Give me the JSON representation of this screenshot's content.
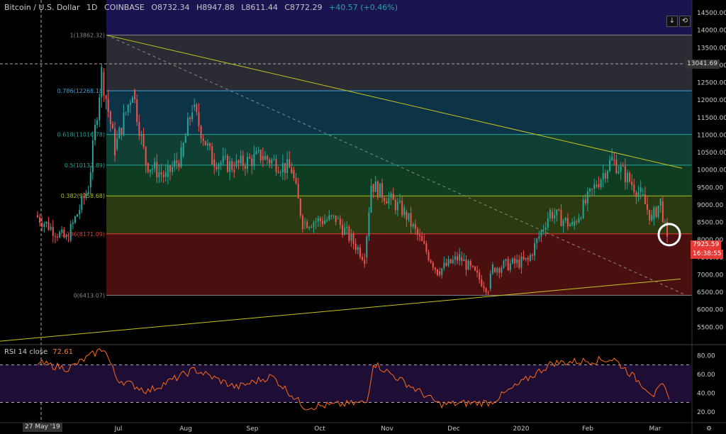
{
  "header": {
    "symbol": "Bitcoin / U.S. Dollar",
    "interval": "1D",
    "exchange": "COINBASE",
    "open": "O8732.34",
    "high": "H8947.88",
    "low": "L8611.44",
    "close": "C8772.29",
    "change": "+40.57 (+0.46%)"
  },
  "rsi": {
    "label": "RSI",
    "params": "14 close",
    "value": "72.61"
  },
  "controls": {
    "arrow_icon": "down-arrow-icon",
    "reset_icon": "reset-icon"
  },
  "price_tags": {
    "crosshair": "13041.69",
    "last": "7925.59",
    "countdown": "16:38:55"
  },
  "crosshair_date": "27 May '19",
  "colors": {
    "up": "#26a69a",
    "down": "#ef5350",
    "trendline": "#c6c41f",
    "rsi_line": "#ff6a1a",
    "last_price_tag": "#e53935"
  },
  "chart_data": {
    "type": "candlestick",
    "price_axis": {
      "range": [
        5000,
        14500
      ],
      "ticks": [
        "14500.00",
        "14000.00",
        "13500.00",
        "13000.00",
        "12500.00",
        "12000.00",
        "11500.00",
        "11000.00",
        "10500.00",
        "10000.00",
        "9500.00",
        "9000.00",
        "8500.00",
        "8000.00",
        "7500.00",
        "7000.00",
        "6500.00",
        "6000.00",
        "5500.00"
      ]
    },
    "time_axis": {
      "labels": [
        "Jul",
        "Aug",
        "Sep",
        "Oct",
        "Nov",
        "Dec",
        "2020",
        "Feb",
        "Mar"
      ]
    },
    "fib_levels": [
      {
        "label": "1(13862.32)",
        "price": 13862.32
      },
      {
        "label": "0.786(12268.18)",
        "price": 12268.18
      },
      {
        "label": "0.618(11016.78)",
        "price": 11016.78
      },
      {
        "label": "0.5(10137.89)",
        "price": 10137.89
      },
      {
        "label": "0.382(9258.68)",
        "price": 9258.68
      },
      {
        "label": "0.236(8171.09)",
        "price": 8171.09
      },
      {
        "label": "0(6413.07)",
        "price": 6413.07
      }
    ],
    "candles_close": [
      {
        "date": "2019-05-27",
        "close": 8700
      },
      {
        "date": "2019-06-10",
        "close": 8000
      },
      {
        "date": "2019-06-20",
        "close": 9500
      },
      {
        "date": "2019-06-26",
        "close": 12800
      },
      {
        "date": "2019-07-02",
        "close": 10600
      },
      {
        "date": "2019-07-10",
        "close": 12300
      },
      {
        "date": "2019-07-16",
        "close": 10200
      },
      {
        "date": "2019-07-25",
        "close": 9800
      },
      {
        "date": "2019-08-01",
        "close": 10400
      },
      {
        "date": "2019-08-06",
        "close": 11800
      },
      {
        "date": "2019-08-15",
        "close": 10300
      },
      {
        "date": "2019-08-25",
        "close": 10100
      },
      {
        "date": "2019-09-06",
        "close": 10400
      },
      {
        "date": "2019-09-20",
        "close": 10000
      },
      {
        "date": "2019-09-25",
        "close": 8500
      },
      {
        "date": "2019-10-10",
        "close": 8600
      },
      {
        "date": "2019-10-23",
        "close": 7500
      },
      {
        "date": "2019-10-26",
        "close": 9600
      },
      {
        "date": "2019-11-10",
        "close": 8800
      },
      {
        "date": "2019-11-25",
        "close": 7100
      },
      {
        "date": "2019-12-05",
        "close": 7500
      },
      {
        "date": "2019-12-18",
        "close": 6600
      },
      {
        "date": "2019-12-20",
        "close": 7200
      },
      {
        "date": "2020-01-05",
        "close": 7400
      },
      {
        "date": "2020-01-15",
        "close": 8800
      },
      {
        "date": "2020-01-25",
        "close": 8400
      },
      {
        "date": "2020-02-05",
        "close": 9600
      },
      {
        "date": "2020-02-12",
        "close": 10300
      },
      {
        "date": "2020-02-25",
        "close": 9300
      },
      {
        "date": "2020-03-01",
        "close": 8600
      },
      {
        "date": "2020-03-05",
        "close": 9100
      },
      {
        "date": "2020-03-08",
        "close": 7925.59
      }
    ],
    "rsi_axis": {
      "range": [
        10,
        90
      ],
      "ticks": [
        "80.00",
        "60.00",
        "40.00",
        "20.00"
      ],
      "bands": [
        70,
        30
      ]
    },
    "rsi_values": [
      {
        "date": "2019-05-27",
        "rsi": 72
      },
      {
        "date": "2019-06-10",
        "rsi": 66
      },
      {
        "date": "2019-06-26",
        "rsi": 88
      },
      {
        "date": "2019-07-02",
        "rsi": 55
      },
      {
        "date": "2019-07-16",
        "rsi": 42
      },
      {
        "date": "2019-08-06",
        "rsi": 65
      },
      {
        "date": "2019-08-25",
        "rsi": 46
      },
      {
        "date": "2019-09-10",
        "rsi": 58
      },
      {
        "date": "2019-09-25",
        "rsi": 25
      },
      {
        "date": "2019-10-23",
        "rsi": 30
      },
      {
        "date": "2019-10-26",
        "rsi": 72
      },
      {
        "date": "2019-11-25",
        "rsi": 28
      },
      {
        "date": "2019-12-18",
        "rsi": 30
      },
      {
        "date": "2020-01-15",
        "rsi": 72
      },
      {
        "date": "2020-02-12",
        "rsi": 76
      },
      {
        "date": "2020-03-01",
        "rsi": 38
      },
      {
        "date": "2020-03-05",
        "rsi": 48
      },
      {
        "date": "2020-03-08",
        "rsi": 33
      }
    ]
  }
}
